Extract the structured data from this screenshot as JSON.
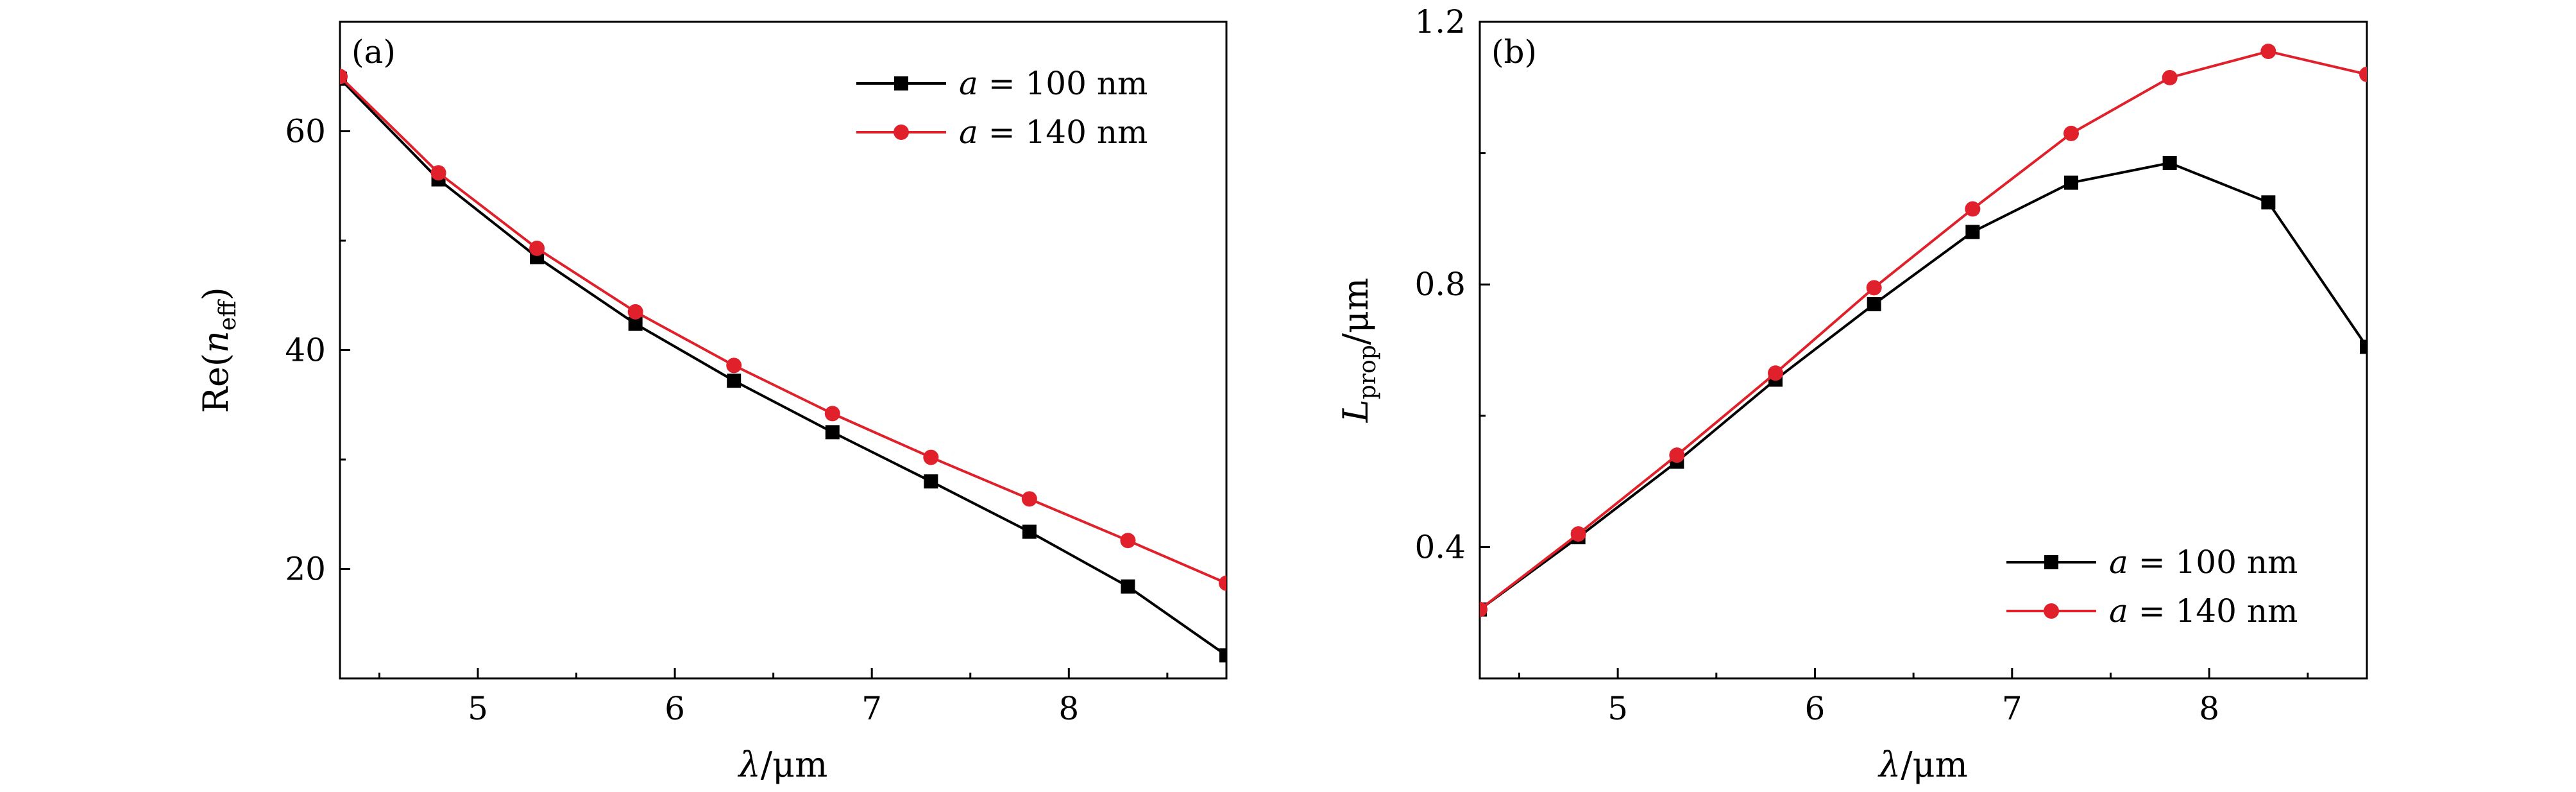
{
  "chart_data": [
    {
      "type": "line",
      "panel_label": "(a)",
      "xlabel": "λ/μm",
      "ylabel": "Re(n_eff)",
      "xlim": [
        4.3,
        8.8
      ],
      "ylim": [
        10,
        70
      ],
      "xticks": [
        5,
        6,
        7,
        8
      ],
      "yticks": [
        20,
        40,
        60
      ],
      "xtick_labels": [
        "5",
        "6",
        "7",
        "8"
      ],
      "ytick_labels": [
        "20",
        "40",
        "60"
      ],
      "legend_position": "top-right",
      "x": [
        4.3,
        4.8,
        5.3,
        5.8,
        6.3,
        6.8,
        7.3,
        7.8,
        8.3,
        8.8
      ],
      "series": [
        {
          "name": "a = 100 nm",
          "marker": "square",
          "color": "#000000",
          "values": [
            64.8,
            55.6,
            48.5,
            42.4,
            37.2,
            32.5,
            28.0,
            23.4,
            18.4,
            12.1
          ]
        },
        {
          "name": "a = 140 nm",
          "marker": "circle",
          "color": "#e0202a",
          "values": [
            65.0,
            56.2,
            49.3,
            43.5,
            38.6,
            34.2,
            30.2,
            26.4,
            22.6,
            18.7
          ]
        }
      ]
    },
    {
      "type": "line",
      "panel_label": "(b)",
      "xlabel": "λ/μm",
      "ylabel": "L_prop/μm",
      "xlim": [
        4.3,
        8.8
      ],
      "ylim": [
        0.2,
        1.2
      ],
      "xticks": [
        5,
        6,
        7,
        8
      ],
      "yticks": [
        0.4,
        0.8,
        1.2
      ],
      "xtick_labels": [
        "5",
        "6",
        "7",
        "8"
      ],
      "ytick_labels": [
        "0.4",
        "0.8",
        "1.2"
      ],
      "legend_position": "bottom-right",
      "x": [
        4.3,
        4.8,
        5.3,
        5.8,
        6.3,
        6.8,
        7.3,
        7.8,
        8.3,
        8.8
      ],
      "series": [
        {
          "name": "a = 100 nm",
          "marker": "square",
          "color": "#000000",
          "values": [
            0.305,
            0.415,
            0.53,
            0.655,
            0.77,
            0.88,
            0.955,
            0.985,
            0.925,
            0.705
          ]
        },
        {
          "name": "a = 140 nm",
          "marker": "circle",
          "color": "#e0202a",
          "values": [
            0.305,
            0.42,
            0.54,
            0.665,
            0.795,
            0.915,
            1.03,
            1.115,
            1.155,
            1.12
          ]
        }
      ]
    }
  ]
}
